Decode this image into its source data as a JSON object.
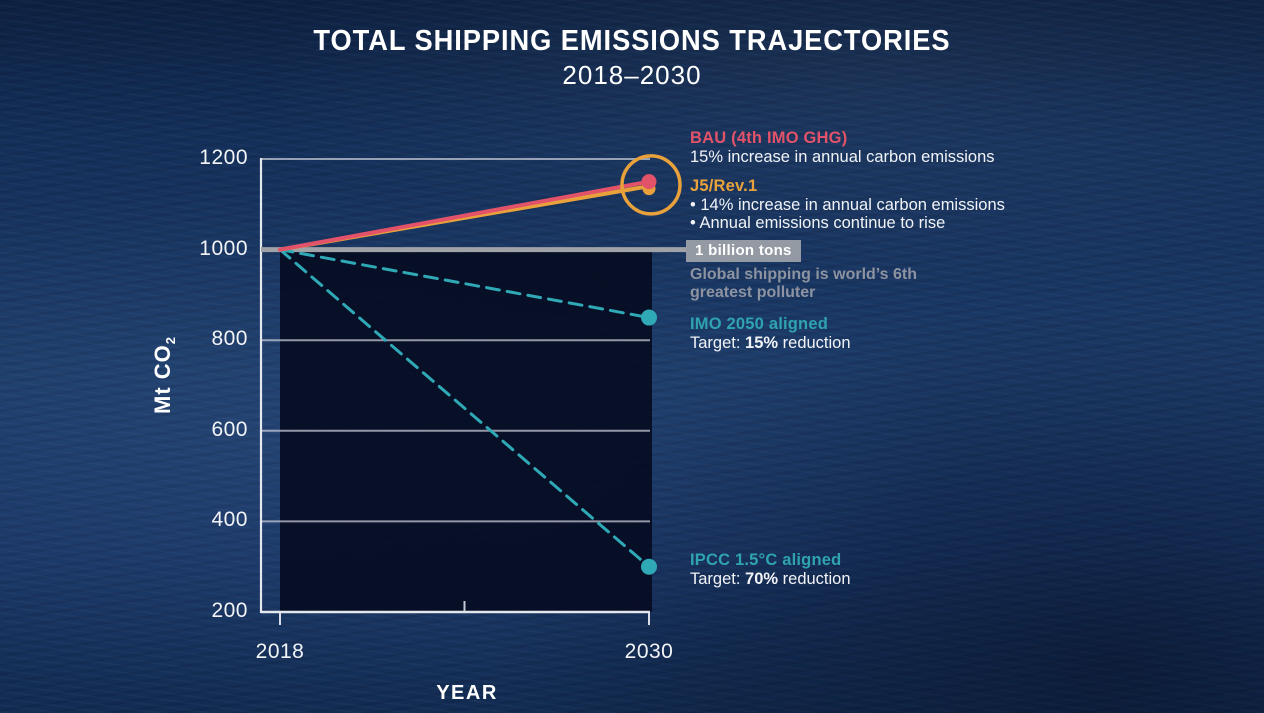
{
  "title": "TOTAL SHIPPING EMISSIONS TRAJECTORIES",
  "subtitle": "2018–2030",
  "axes": {
    "x_label": "YEAR",
    "y_label": "Mt CO",
    "y_label_sub": "2",
    "y_ticks": [
      1200,
      1000,
      800,
      600,
      400,
      200
    ],
    "x_ticks": [
      2018,
      2030
    ]
  },
  "chart_data": {
    "type": "line",
    "x": [
      2018,
      2030
    ],
    "xlabel": "YEAR",
    "ylabel": "Mt CO2",
    "ylim": [
      200,
      1200
    ],
    "grid": true,
    "series": [
      {
        "name": "BAU (4th IMO GHG)",
        "color": "#e2536a",
        "style": "solid",
        "values": [
          1000,
          1150
        ],
        "note": "15% increase in annual carbon emissions"
      },
      {
        "name": "J5/Rev.1",
        "color": "#e9a23b",
        "style": "solid",
        "values": [
          1000,
          1140
        ],
        "note": "14% increase in annual carbon emissions; annual emissions continue to rise"
      },
      {
        "name": "IMO 2050 aligned",
        "color": "#2fa9b5",
        "style": "dashed",
        "values": [
          1000,
          850
        ],
        "note": "Target: 15% reduction"
      },
      {
        "name": "IPCC 1.5°C aligned",
        "color": "#2fa9b5",
        "style": "dashed",
        "values": [
          1000,
          300
        ],
        "note": "Target: 70% reduction"
      }
    ],
    "reference_line": {
      "value": 1000,
      "label": "1 billion tons",
      "color": "#9fa2a6"
    },
    "annotation_circle": {
      "color": "#e9a23b",
      "around": "2030 endpoints of BAU and J5/Rev.1"
    },
    "shaded_area": {
      "below": 1000,
      "from_x": 2018,
      "to_x": 2030,
      "color": "#060b20"
    }
  },
  "legend": {
    "bau": {
      "title": "BAU (4th IMO GHG)",
      "desc": "15% increase in annual carbon emissions",
      "color": "#e2536a"
    },
    "j5": {
      "title": "J5/Rev.1",
      "bullet1": "• 14% increase in annual carbon emissions",
      "bullet2": "• Annual emissions continue to rise",
      "color": "#e9a23b"
    },
    "billion": {
      "badge": "1 billion tons",
      "note_line1": "Global shipping is world’s 6th",
      "note_line2": "greatest polluter"
    },
    "imo": {
      "title": "IMO 2050 aligned",
      "target_prefix": "Target: ",
      "target_bold": "15%",
      "target_suffix": " reduction",
      "color": "#2fa3b0"
    },
    "ipcc": {
      "title": "IPCC 1.5°C aligned",
      "target_prefix": "Target: ",
      "target_bold": "70%",
      "target_suffix": " reduction",
      "color": "#2fa3b0"
    }
  }
}
